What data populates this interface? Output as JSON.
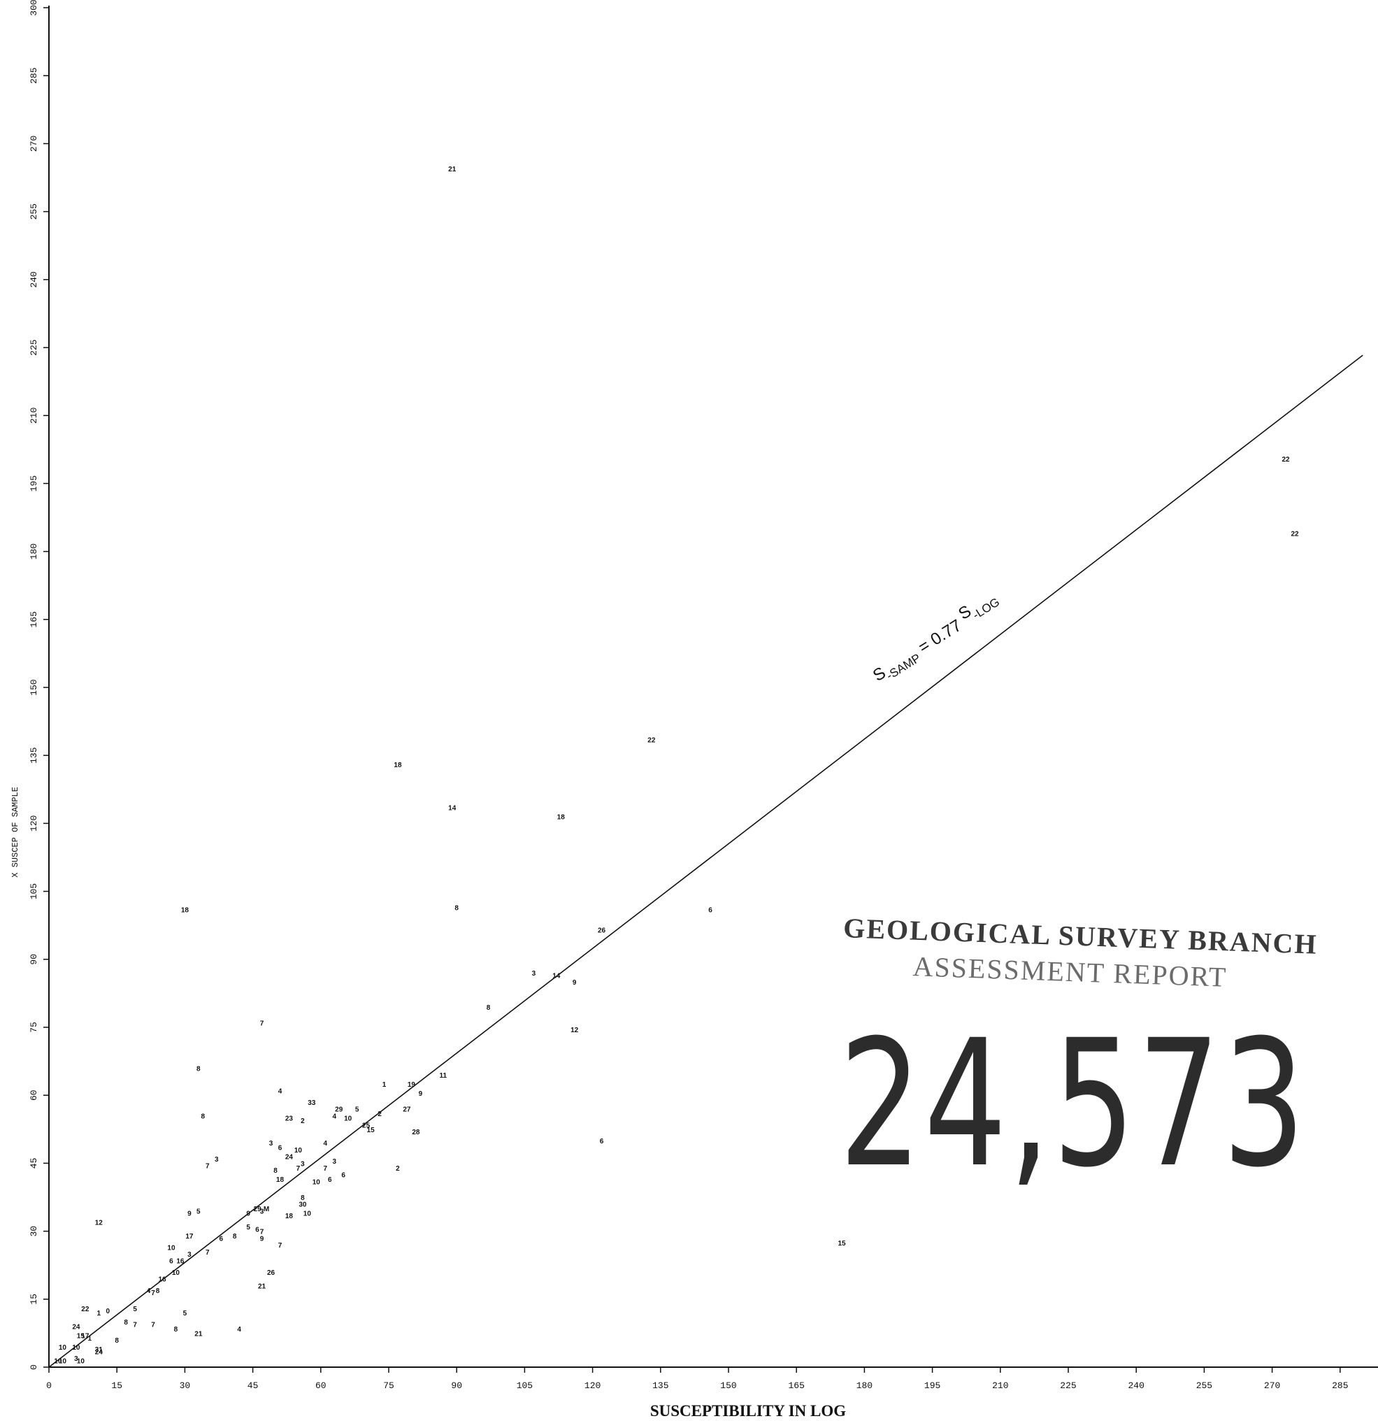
{
  "chart_data": {
    "type": "scatter",
    "xlabel": "SUSCEPTIBILITY IN LOG",
    "ylabel": "X SUSCEP OF SAMPLE",
    "xlim": [
      0,
      295
    ],
    "ylim": [
      0,
      300
    ],
    "x_ticks": [
      "0",
      "15",
      "30",
      "45",
      "60",
      "75",
      "90",
      "105",
      "120",
      "135",
      "150",
      "165",
      "180",
      "195",
      "210",
      "225",
      "240",
      "255",
      "270",
      "285"
    ],
    "y_ticks": [
      "0",
      "15",
      "30",
      "45",
      "60",
      "75",
      "90",
      "105",
      "120",
      "135",
      "150",
      "165",
      "180",
      "195",
      "210",
      "225",
      "240",
      "255",
      "270",
      "285",
      "300"
    ],
    "regression": {
      "slope": 0.77,
      "x_range": [
        0,
        290
      ],
      "label_parts": [
        "S",
        "-SAMP",
        " = 0.77 ",
        "S",
        "-LOG"
      ]
    },
    "points": [
      {
        "x": 89,
        "y": 264.5,
        "label": "21"
      },
      {
        "x": 273,
        "y": 200.5,
        "label": "22"
      },
      {
        "x": 275,
        "y": 184,
        "label": "22"
      },
      {
        "x": 133,
        "y": 138.5,
        "label": "22"
      },
      {
        "x": 77,
        "y": 133,
        "label": "18"
      },
      {
        "x": 89,
        "y": 123.5,
        "label": "14"
      },
      {
        "x": 113,
        "y": 121.5,
        "label": "18"
      },
      {
        "x": 30,
        "y": 101,
        "label": "18"
      },
      {
        "x": 90,
        "y": 101.5,
        "label": "8"
      },
      {
        "x": 146,
        "y": 101,
        "label": "6"
      },
      {
        "x": 122,
        "y": 96.5,
        "label": "26"
      },
      {
        "x": 107,
        "y": 87,
        "label": "3"
      },
      {
        "x": 112,
        "y": 86.5,
        "label": "14"
      },
      {
        "x": 116,
        "y": 85,
        "label": "9"
      },
      {
        "x": 97,
        "y": 79.5,
        "label": "8"
      },
      {
        "x": 116,
        "y": 74.5,
        "label": "12"
      },
      {
        "x": 47,
        "y": 76,
        "label": "7"
      },
      {
        "x": 33,
        "y": 66,
        "label": "8"
      },
      {
        "x": 87,
        "y": 64.5,
        "label": "11"
      },
      {
        "x": 74,
        "y": 62.5,
        "label": "1"
      },
      {
        "x": 80,
        "y": 62.5,
        "label": "19"
      },
      {
        "x": 82,
        "y": 60.5,
        "label": "9"
      },
      {
        "x": 51,
        "y": 61,
        "label": "4"
      },
      {
        "x": 58,
        "y": 58.5,
        "label": "33"
      },
      {
        "x": 34,
        "y": 55.5,
        "label": "8"
      },
      {
        "x": 64,
        "y": 57,
        "label": "29"
      },
      {
        "x": 68,
        "y": 57,
        "label": "5"
      },
      {
        "x": 79,
        "y": 57,
        "label": "27"
      },
      {
        "x": 73,
        "y": 56,
        "label": "2"
      },
      {
        "x": 53,
        "y": 55,
        "label": "23"
      },
      {
        "x": 56,
        "y": 54.5,
        "label": "2"
      },
      {
        "x": 63,
        "y": 55.5,
        "label": "4"
      },
      {
        "x": 66,
        "y": 55,
        "label": "10"
      },
      {
        "x": 70,
        "y": 53.5,
        "label": "25"
      },
      {
        "x": 71,
        "y": 52.5,
        "label": "15"
      },
      {
        "x": 81,
        "y": 52,
        "label": "28"
      },
      {
        "x": 49,
        "y": 49.5,
        "label": "3"
      },
      {
        "x": 61,
        "y": 49.5,
        "label": "4"
      },
      {
        "x": 51,
        "y": 48.5,
        "label": "6"
      },
      {
        "x": 55,
        "y": 48,
        "label": "10"
      },
      {
        "x": 53,
        "y": 46.5,
        "label": "24"
      },
      {
        "x": 37,
        "y": 46,
        "label": "3"
      },
      {
        "x": 35,
        "y": 44.5,
        "label": "7"
      },
      {
        "x": 56,
        "y": 45,
        "label": "3"
      },
      {
        "x": 63,
        "y": 45.5,
        "label": "3"
      },
      {
        "x": 50,
        "y": 43.5,
        "label": "8"
      },
      {
        "x": 55,
        "y": 44,
        "label": "7"
      },
      {
        "x": 61,
        "y": 44,
        "label": "7"
      },
      {
        "x": 77,
        "y": 44,
        "label": "2"
      },
      {
        "x": 65,
        "y": 42.5,
        "label": "6"
      },
      {
        "x": 51,
        "y": 41.5,
        "label": "18"
      },
      {
        "x": 59,
        "y": 41,
        "label": "10"
      },
      {
        "x": 62,
        "y": 41.5,
        "label": "6"
      },
      {
        "x": 56,
        "y": 37.5,
        "label": "8"
      },
      {
        "x": 56,
        "y": 36,
        "label": "30"
      },
      {
        "x": 31,
        "y": 34,
        "label": "9"
      },
      {
        "x": 33,
        "y": 34.5,
        "label": "5"
      },
      {
        "x": 44,
        "y": 34,
        "label": "9"
      },
      {
        "x": 46,
        "y": 35,
        "label": "29"
      },
      {
        "x": 48,
        "y": 35,
        "label": "M"
      },
      {
        "x": 47,
        "y": 34.5,
        "label": "3"
      },
      {
        "x": 53,
        "y": 33.5,
        "label": "18"
      },
      {
        "x": 57,
        "y": 34,
        "label": "10"
      },
      {
        "x": 11,
        "y": 32,
        "label": "12"
      },
      {
        "x": 44,
        "y": 31,
        "label": "5"
      },
      {
        "x": 46,
        "y": 30.5,
        "label": "6"
      },
      {
        "x": 47,
        "y": 30,
        "label": "7"
      },
      {
        "x": 31,
        "y": 29,
        "label": "17"
      },
      {
        "x": 38,
        "y": 28.5,
        "label": "6"
      },
      {
        "x": 41,
        "y": 29,
        "label": "8"
      },
      {
        "x": 47,
        "y": 28.5,
        "label": "9"
      },
      {
        "x": 51,
        "y": 27,
        "label": "7"
      },
      {
        "x": 27,
        "y": 26.5,
        "label": "10"
      },
      {
        "x": 35,
        "y": 25.5,
        "label": "7"
      },
      {
        "x": 31,
        "y": 25,
        "label": "3"
      },
      {
        "x": 27,
        "y": 23.5,
        "label": "6"
      },
      {
        "x": 29,
        "y": 23.5,
        "label": "16"
      },
      {
        "x": 28,
        "y": 21,
        "label": "10"
      },
      {
        "x": 25,
        "y": 19.5,
        "label": "16"
      },
      {
        "x": 49,
        "y": 21,
        "label": "26"
      },
      {
        "x": 47,
        "y": 18,
        "label": "21"
      },
      {
        "x": 22,
        "y": 17,
        "label": "4"
      },
      {
        "x": 23,
        "y": 16.5,
        "label": "7"
      },
      {
        "x": 24,
        "y": 17,
        "label": "8"
      },
      {
        "x": 8,
        "y": 13,
        "label": "22"
      },
      {
        "x": 11,
        "y": 12,
        "label": "1"
      },
      {
        "x": 13,
        "y": 12.5,
        "label": "0"
      },
      {
        "x": 19,
        "y": 13,
        "label": "5"
      },
      {
        "x": 30,
        "y": 12,
        "label": "5"
      },
      {
        "x": 17,
        "y": 10,
        "label": "8"
      },
      {
        "x": 19,
        "y": 9.5,
        "label": "7"
      },
      {
        "x": 23,
        "y": 9.5,
        "label": "7"
      },
      {
        "x": 28,
        "y": 8.5,
        "label": "8"
      },
      {
        "x": 33,
        "y": 7.5,
        "label": "21"
      },
      {
        "x": 42,
        "y": 8.5,
        "label": "4"
      },
      {
        "x": 6,
        "y": 9,
        "label": "24"
      },
      {
        "x": 7,
        "y": 7,
        "label": "15"
      },
      {
        "x": 8,
        "y": 7,
        "label": "17"
      },
      {
        "x": 9,
        "y": 6.5,
        "label": "1"
      },
      {
        "x": 15,
        "y": 6,
        "label": "8"
      },
      {
        "x": 3,
        "y": 4.5,
        "label": "10"
      },
      {
        "x": 6,
        "y": 4.5,
        "label": "10"
      },
      {
        "x": 11,
        "y": 4,
        "label": "31"
      },
      {
        "x": 11,
        "y": 3.5,
        "label": "24"
      },
      {
        "x": 6,
        "y": 2,
        "label": "3"
      },
      {
        "x": 7,
        "y": 1.5,
        "label": "10"
      },
      {
        "x": 2,
        "y": 1.5,
        "label": "10"
      },
      {
        "x": 3,
        "y": 1.5,
        "label": "10"
      },
      {
        "x": 175,
        "y": 27.5,
        "label": "15"
      },
      {
        "x": 122,
        "y": 50,
        "label": "6"
      }
    ]
  },
  "stamp": {
    "line1": "GEOLOGICAL SURVEY BRANCH",
    "line2": "ASSESSMENT REPORT",
    "report_number": "24,573"
  }
}
